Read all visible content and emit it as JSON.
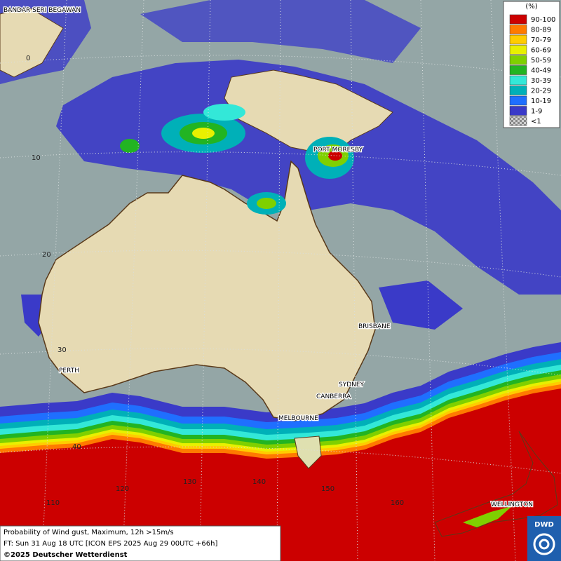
{
  "legend": {
    "title": "(%)",
    "entries": [
      {
        "label": "90-100",
        "color": "#cc0000"
      },
      {
        "label": "80-89",
        "color": "#ff7a00"
      },
      {
        "label": "70-79",
        "color": "#ffcc00"
      },
      {
        "label": "60-69",
        "color": "#e8f000"
      },
      {
        "label": "50-59",
        "color": "#7fd000"
      },
      {
        "label": "40-49",
        "color": "#22b422"
      },
      {
        "label": "30-39",
        "color": "#33e8d8"
      },
      {
        "label": "20-29",
        "color": "#00b0b8"
      },
      {
        "label": "10-19",
        "color": "#1f6fff"
      },
      {
        "label": "1-9",
        "color": "#3a3ac8"
      },
      {
        "label": "<1",
        "color": "#a8a8a8"
      }
    ]
  },
  "places": [
    "BANDAR SERI BEGAWAN",
    "PORT MORESBY",
    "BRISBANE",
    "PERTH",
    "SYDNEY",
    "CANBERRA",
    "MELBOURNE",
    "WELLINGTON"
  ],
  "latitude_labels": [
    "0",
    "10",
    "20",
    "30",
    "40"
  ],
  "longitude_labels": [
    "110",
    "120",
    "130",
    "140",
    "150",
    "160"
  ],
  "caption": {
    "product": "Probability of Wind gust, Maximum, 12h >15m/s",
    "forecast_time": "FT: Sun 31 Aug 18 UTC [ICON EPS 2025 Aug 29 00UTC +66h]",
    "copyright": "©2025 Deutscher Wetterdienst"
  },
  "logo": "DWD"
}
